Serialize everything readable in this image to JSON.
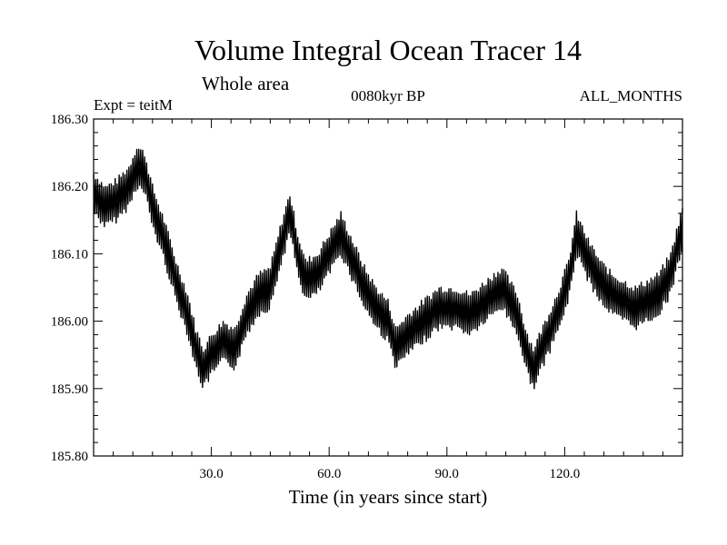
{
  "chart_data": {
    "type": "line",
    "title": "Volume Integral Ocean Tracer 14",
    "subtitle": "Whole area",
    "left_label": "Expt = teitM",
    "center_label": "0080kyr BP",
    "right_label": "ALL_MONTHS",
    "xlabel": "Time (in years since start)",
    "ylabel": "",
    "xlim": [
      0,
      150
    ],
    "ylim": [
      185.8,
      186.3
    ],
    "xticks": [
      {
        "value": 30,
        "label": "30.0"
      },
      {
        "value": 60,
        "label": "60.0"
      },
      {
        "value": 90,
        "label": "90.0"
      },
      {
        "value": 120,
        "label": "120.0"
      }
    ],
    "yticks": [
      {
        "value": 185.8,
        "label": "185.80"
      },
      {
        "value": 185.9,
        "label": "185.90"
      },
      {
        "value": 186.0,
        "label": "186.00"
      },
      {
        "value": 186.1,
        "label": "186.10"
      },
      {
        "value": 186.2,
        "label": "186.20"
      },
      {
        "value": 186.3,
        "label": "186.30"
      }
    ],
    "grid": false,
    "line_color": "#000000",
    "series": [
      {
        "x": [
          0,
          3,
          6,
          9,
          11,
          13,
          15,
          18,
          21,
          24,
          26,
          28,
          30,
          33,
          36,
          39,
          42,
          45,
          48,
          50,
          52,
          54,
          57,
          60,
          63,
          66,
          69,
          72,
          75,
          77,
          80,
          84,
          88,
          92,
          96,
          100,
          104,
          108,
          110,
          112,
          115,
          118,
          121,
          123,
          126,
          129,
          132,
          135,
          138,
          141,
          144,
          147,
          150
        ],
        "y": [
          186.19,
          186.17,
          186.18,
          186.2,
          186.23,
          186.22,
          186.17,
          186.12,
          186.06,
          186.01,
          185.96,
          185.93,
          185.95,
          185.97,
          185.96,
          186.01,
          186.04,
          186.05,
          186.12,
          186.16,
          186.1,
          186.06,
          186.07,
          186.1,
          186.13,
          186.09,
          186.05,
          186.02,
          186.0,
          185.96,
          185.98,
          186.0,
          186.02,
          186.02,
          186.01,
          186.03,
          186.05,
          186.01,
          185.96,
          185.93,
          185.97,
          186.01,
          186.06,
          186.13,
          186.09,
          186.06,
          186.04,
          186.03,
          186.02,
          186.03,
          186.04,
          186.07,
          186.14
        ]
      }
    ]
  }
}
